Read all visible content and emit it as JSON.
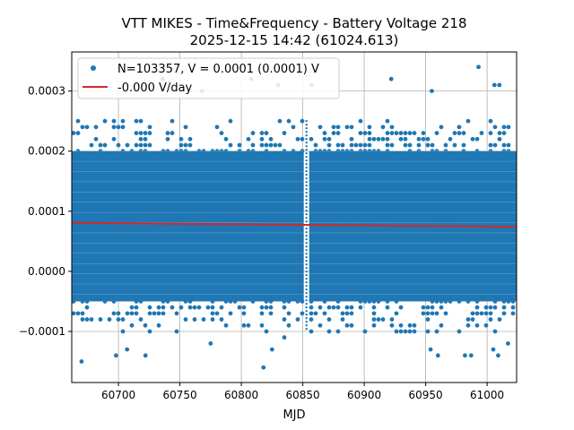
{
  "chart_data": {
    "type": "scatter",
    "title": "VTT MIKES - Time&Frequency - Battery Voltage 218",
    "subtitle": "2025-12-15 14:42 (61024.613)",
    "xlabel": "MJD",
    "ylabel": "",
    "xlim": [
      60662,
      61024
    ],
    "ylim": [
      -0.000185,
      0.000365
    ],
    "xticks": [
      60700,
      60750,
      60800,
      60850,
      60900,
      60950,
      61000
    ],
    "xtick_labels": [
      "60700",
      "60750",
      "60800",
      "60850",
      "60900",
      "60950",
      "61000"
    ],
    "yticks": [
      -0.0001,
      0.0,
      0.0001,
      0.0002,
      0.0003
    ],
    "ytick_labels": [
      "−0.0001",
      "0.0000",
      "0.0001",
      "0.0002",
      "0.0003"
    ],
    "grid": true,
    "legend_position": "top-left",
    "series": [
      {
        "name": "N=103357, V = 0.0001 (0.0001) V",
        "kind": "points",
        "color": "#1f77b4",
        "dense_x_range": [
          60662,
          61024
        ],
        "dense_y_range": [
          -0.0001,
          0.00025
        ],
        "gap_x": 60853,
        "outliers": [
          [
            60670,
            -0.00015
          ],
          [
            60698,
            -0.00014
          ],
          [
            60707,
            -0.00013
          ],
          [
            60722,
            -0.00014
          ],
          [
            60775,
            -0.00012
          ],
          [
            60818,
            -0.00016
          ],
          [
            60825,
            -0.00013
          ],
          [
            60835,
            -0.00011
          ],
          [
            60954,
            -0.00013
          ],
          [
            60960,
            -0.00014
          ],
          [
            60982,
            -0.00014
          ],
          [
            60987,
            -0.00014
          ],
          [
            61005,
            -0.00013
          ],
          [
            61009,
            -0.00014
          ],
          [
            61017,
            -0.00012
          ],
          [
            60736,
            0.00032
          ],
          [
            60808,
            0.00032
          ],
          [
            60830,
            0.00031
          ],
          [
            60857,
            0.00031
          ],
          [
            60922,
            0.00032
          ],
          [
            60955,
            0.0003
          ],
          [
            60993,
            0.00034
          ],
          [
            61006,
            0.00031
          ],
          [
            61010,
            0.00031
          ],
          [
            60768,
            0.0003
          ]
        ]
      },
      {
        "name": "-0.000 V/day",
        "kind": "line",
        "color": "#d62728",
        "x": [
          60662,
          61024
        ],
        "y": [
          8.08e-05,
          7.42e-05
        ]
      }
    ]
  }
}
